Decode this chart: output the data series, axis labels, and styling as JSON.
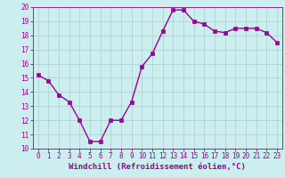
{
  "x": [
    0,
    1,
    2,
    3,
    4,
    5,
    6,
    7,
    8,
    9,
    10,
    11,
    12,
    13,
    14,
    15,
    16,
    17,
    18,
    19,
    20,
    21,
    22,
    23
  ],
  "y": [
    15.2,
    14.8,
    13.8,
    13.3,
    12.0,
    10.5,
    10.5,
    12.0,
    12.0,
    13.3,
    15.8,
    16.7,
    18.3,
    19.8,
    19.8,
    19.0,
    18.8,
    18.3,
    18.2,
    18.5,
    18.5,
    18.5,
    18.2,
    17.5
  ],
  "line_color": "#990099",
  "marker": "s",
  "markersize": 2.5,
  "linewidth": 1.0,
  "xlabel": "Windchill (Refroidissement éolien,°C)",
  "xlabel_fontsize": 6.5,
  "bg_color": "#cceeee",
  "grid_color": "#aacccc",
  "ylim": [
    10,
    20
  ],
  "xlim": [
    -0.5,
    23.5
  ],
  "yticks": [
    10,
    11,
    12,
    13,
    14,
    15,
    16,
    17,
    18,
    19,
    20
  ],
  "xticks": [
    0,
    1,
    2,
    3,
    4,
    5,
    6,
    7,
    8,
    9,
    10,
    11,
    12,
    13,
    14,
    15,
    16,
    17,
    18,
    19,
    20,
    21,
    22,
    23
  ],
  "tick_fontsize": 5.5,
  "tick_color": "#990099",
  "spine_color": "#990099"
}
